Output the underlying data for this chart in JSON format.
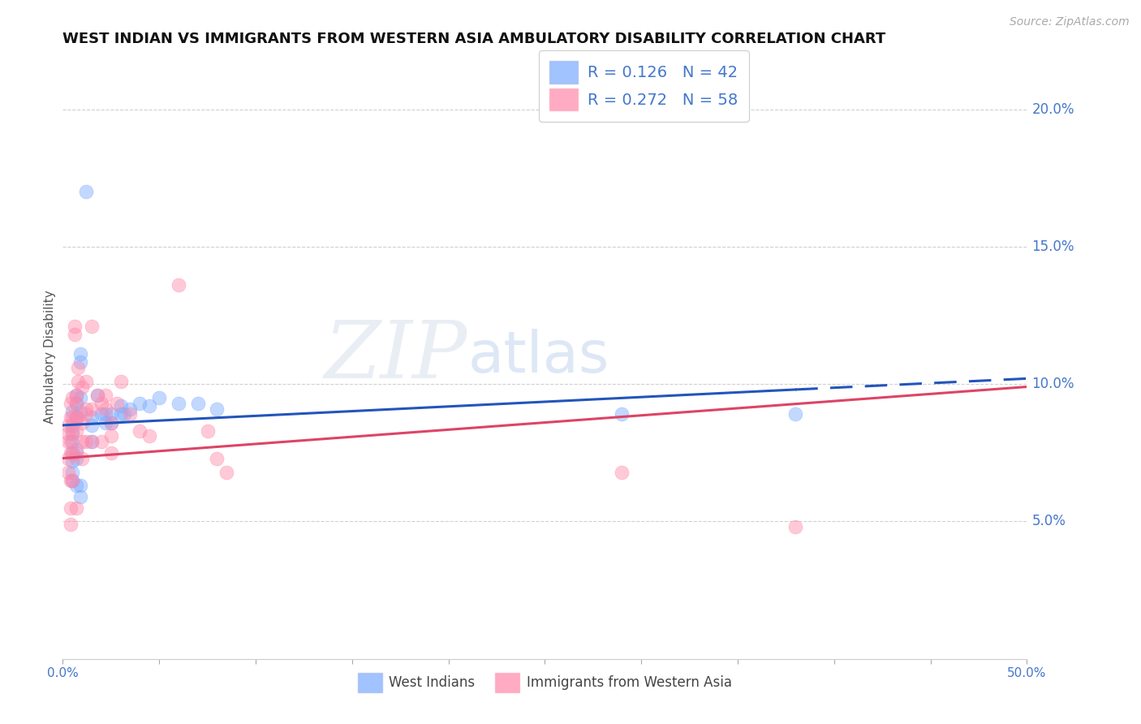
{
  "title": "WEST INDIAN VS IMMIGRANTS FROM WESTERN ASIA AMBULATORY DISABILITY CORRELATION CHART",
  "source": "Source: ZipAtlas.com",
  "ylabel": "Ambulatory Disability",
  "xlim": [
    0,
    0.5
  ],
  "ylim": [
    0.0,
    0.22
  ],
  "ytick_right_labels": [
    "5.0%",
    "10.0%",
    "15.0%",
    "20.0%"
  ],
  "ytick_right_values": [
    0.05,
    0.1,
    0.15,
    0.2
  ],
  "background_color": "#ffffff",
  "blue_color": "#7aaaff",
  "pink_color": "#ff88aa",
  "blue_r": "0.126",
  "blue_n": "42",
  "pink_r": "0.272",
  "pink_n": "58",
  "legend_label_blue": "West Indians",
  "legend_label_pink": "Immigrants from Western Asia",
  "watermark_zip": "ZIP",
  "watermark_atlas": "atlas",
  "blue_scatter": [
    [
      0.005,
      0.085
    ],
    [
      0.005,
      0.082
    ],
    [
      0.005,
      0.09
    ],
    [
      0.005,
      0.079
    ],
    [
      0.005,
      0.075
    ],
    [
      0.005,
      0.072
    ],
    [
      0.005,
      0.068
    ],
    [
      0.005,
      0.065
    ],
    [
      0.007,
      0.096
    ],
    [
      0.007,
      0.093
    ],
    [
      0.007,
      0.088
    ],
    [
      0.007,
      0.076
    ],
    [
      0.007,
      0.073
    ],
    [
      0.007,
      0.063
    ],
    [
      0.009,
      0.111
    ],
    [
      0.009,
      0.108
    ],
    [
      0.009,
      0.095
    ],
    [
      0.009,
      0.09
    ],
    [
      0.009,
      0.063
    ],
    [
      0.009,
      0.059
    ],
    [
      0.012,
      0.17
    ],
    [
      0.015,
      0.088
    ],
    [
      0.015,
      0.085
    ],
    [
      0.015,
      0.079
    ],
    [
      0.018,
      0.096
    ],
    [
      0.02,
      0.089
    ],
    [
      0.022,
      0.089
    ],
    [
      0.022,
      0.086
    ],
    [
      0.025,
      0.089
    ],
    [
      0.025,
      0.086
    ],
    [
      0.03,
      0.092
    ],
    [
      0.03,
      0.089
    ],
    [
      0.032,
      0.089
    ],
    [
      0.035,
      0.091
    ],
    [
      0.04,
      0.093
    ],
    [
      0.045,
      0.092
    ],
    [
      0.05,
      0.095
    ],
    [
      0.06,
      0.093
    ],
    [
      0.07,
      0.093
    ],
    [
      0.08,
      0.091
    ],
    [
      0.29,
      0.089
    ],
    [
      0.38,
      0.089
    ]
  ],
  "pink_scatter": [
    [
      0.003,
      0.085
    ],
    [
      0.003,
      0.082
    ],
    [
      0.003,
      0.079
    ],
    [
      0.003,
      0.073
    ],
    [
      0.003,
      0.068
    ],
    [
      0.004,
      0.093
    ],
    [
      0.004,
      0.088
    ],
    [
      0.004,
      0.079
    ],
    [
      0.004,
      0.075
    ],
    [
      0.004,
      0.065
    ],
    [
      0.004,
      0.055
    ],
    [
      0.004,
      0.049
    ],
    [
      0.005,
      0.095
    ],
    [
      0.005,
      0.088
    ],
    [
      0.005,
      0.083
    ],
    [
      0.005,
      0.075
    ],
    [
      0.005,
      0.065
    ],
    [
      0.006,
      0.121
    ],
    [
      0.006,
      0.118
    ],
    [
      0.007,
      0.096
    ],
    [
      0.007,
      0.093
    ],
    [
      0.007,
      0.088
    ],
    [
      0.007,
      0.083
    ],
    [
      0.007,
      0.075
    ],
    [
      0.007,
      0.055
    ],
    [
      0.008,
      0.106
    ],
    [
      0.008,
      0.101
    ],
    [
      0.008,
      0.088
    ],
    [
      0.01,
      0.099
    ],
    [
      0.01,
      0.086
    ],
    [
      0.01,
      0.079
    ],
    [
      0.01,
      0.073
    ],
    [
      0.012,
      0.101
    ],
    [
      0.012,
      0.091
    ],
    [
      0.012,
      0.089
    ],
    [
      0.012,
      0.079
    ],
    [
      0.015,
      0.121
    ],
    [
      0.015,
      0.091
    ],
    [
      0.015,
      0.079
    ],
    [
      0.018,
      0.096
    ],
    [
      0.02,
      0.093
    ],
    [
      0.02,
      0.079
    ],
    [
      0.022,
      0.096
    ],
    [
      0.022,
      0.091
    ],
    [
      0.025,
      0.086
    ],
    [
      0.025,
      0.081
    ],
    [
      0.025,
      0.075
    ],
    [
      0.028,
      0.093
    ],
    [
      0.03,
      0.101
    ],
    [
      0.035,
      0.089
    ],
    [
      0.04,
      0.083
    ],
    [
      0.045,
      0.081
    ],
    [
      0.06,
      0.136
    ],
    [
      0.075,
      0.083
    ],
    [
      0.08,
      0.073
    ],
    [
      0.085,
      0.068
    ],
    [
      0.29,
      0.068
    ],
    [
      0.38,
      0.048
    ]
  ],
  "blue_line_x0": 0.0,
  "blue_line_x_solid_end": 0.38,
  "blue_line_x1": 0.5,
  "blue_line_y0": 0.085,
  "blue_line_y_solid_end": 0.098,
  "blue_line_y1": 0.102,
  "pink_line_x0": 0.0,
  "pink_line_x1": 0.5,
  "pink_line_y0": 0.073,
  "pink_line_y1": 0.099,
  "grid_color": "#d0d0d0",
  "title_color": "#111111",
  "axis_label_color": "#4477cc",
  "legend_text_color": "#4477cc",
  "title_fontsize": 13,
  "source_fontsize": 10,
  "ylabel_fontsize": 11,
  "scatter_size": 150,
  "scatter_alpha": 0.45,
  "trend_linewidth": 2.2,
  "blue_trend_color": "#2255bb",
  "pink_trend_color": "#dd4466"
}
